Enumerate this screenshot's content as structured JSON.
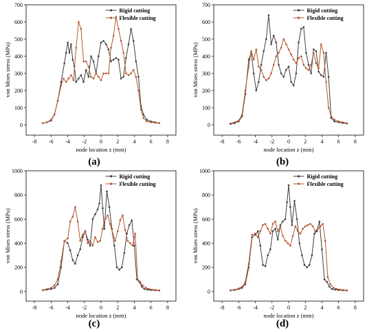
{
  "colors": {
    "rigid": "#3d3d3d",
    "flexible": "#b5542e",
    "axis": "#000000"
  },
  "chart_data": [
    {
      "panel": "(a)",
      "type": "line",
      "xlabel": "node location z (mm)",
      "ylabel": "von Mises stress (MPa)",
      "xlim": [
        -9,
        9
      ],
      "ylim": [
        -60,
        700
      ],
      "xticks": [
        -8,
        -6,
        -4,
        -2,
        0,
        2,
        4,
        6,
        8
      ],
      "yticks": [
        0,
        100,
        200,
        300,
        400,
        500,
        600,
        700
      ],
      "legend": "top-right",
      "series": [
        {
          "name": "Rigid cutting",
          "x": [
            -7,
            -6.5,
            -6,
            -5.6,
            -5.2,
            -4.8,
            -4.4,
            -4.2,
            -4,
            -3.8,
            -3.6,
            -3.4,
            -3.2,
            -3,
            -2.7,
            -2.4,
            -2.1,
            -1.8,
            -1.5,
            -1.2,
            -0.9,
            -0.6,
            -0.3,
            0,
            0.3,
            0.6,
            0.9,
            1.2,
            1.5,
            1.8,
            2.1,
            2.4,
            2.7,
            3,
            3.3,
            3.6,
            3.9,
            4.2,
            4.5,
            4.8,
            5.1,
            5.5,
            6,
            6.5,
            7
          ],
          "y": [
            10,
            15,
            25,
            60,
            140,
            250,
            360,
            420,
            480,
            420,
            470,
            380,
            340,
            250,
            270,
            290,
            250,
            320,
            280,
            400,
            370,
            300,
            400,
            480,
            490,
            470,
            440,
            370,
            380,
            390,
            380,
            270,
            280,
            390,
            470,
            560,
            490,
            370,
            280,
            110,
            60,
            30,
            20,
            15,
            10
          ]
        },
        {
          "name": "Flexible cutting",
          "x": [
            -7,
            -6.5,
            -6,
            -5.6,
            -5.2,
            -4.8,
            -4.5,
            -4.2,
            -3.9,
            -3.6,
            -3.3,
            -3,
            -2.7,
            -2.4,
            -2.1,
            -1.8,
            -1.5,
            -1.2,
            -0.9,
            -0.6,
            -0.3,
            0,
            0.3,
            0.6,
            0.9,
            1.2,
            1.5,
            1.8,
            2.1,
            2.4,
            2.7,
            3,
            3.3,
            3.6,
            3.9,
            4.2,
            4.5,
            4.8,
            5.1,
            5.5,
            6,
            6.5,
            7
          ],
          "y": [
            10,
            15,
            30,
            60,
            140,
            230,
            270,
            250,
            270,
            290,
            260,
            450,
            600,
            560,
            370,
            370,
            340,
            280,
            270,
            300,
            280,
            260,
            300,
            300,
            300,
            450,
            520,
            630,
            560,
            490,
            420,
            300,
            290,
            300,
            320,
            280,
            200,
            90,
            40,
            20,
            15,
            12,
            10
          ]
        }
      ]
    },
    {
      "panel": "(b)",
      "type": "line",
      "xlabel": "node location z (mm)",
      "ylabel": "von Mises stress (MPa)",
      "xlim": [
        -9,
        9
      ],
      "ylim": [
        -60,
        700
      ],
      "xticks": [
        -8,
        -6,
        -4,
        -2,
        0,
        2,
        4,
        6,
        8
      ],
      "yticks": [
        0,
        100,
        200,
        300,
        400,
        500,
        600,
        700
      ],
      "legend": "top-right",
      "series": [
        {
          "name": "Rigid cutting",
          "x": [
            -7,
            -6.5,
            -6,
            -5.6,
            -5.2,
            -4.8,
            -4.5,
            -4.2,
            -3.9,
            -3.6,
            -3.3,
            -3,
            -2.7,
            -2.4,
            -2.1,
            -1.8,
            -1.5,
            -1.2,
            -0.9,
            -0.6,
            -0.3,
            0,
            0.3,
            0.6,
            0.9,
            1.2,
            1.5,
            1.8,
            2.1,
            2.4,
            2.7,
            3,
            3.3,
            3.6,
            3.9,
            4.2,
            4.5,
            4.8,
            5.1,
            5.5,
            6,
            6.5,
            7
          ],
          "y": [
            5,
            10,
            20,
            50,
            180,
            380,
            420,
            300,
            200,
            250,
            350,
            430,
            500,
            640,
            470,
            520,
            480,
            350,
            300,
            280,
            320,
            340,
            250,
            230,
            300,
            480,
            560,
            570,
            420,
            350,
            300,
            440,
            430,
            310,
            290,
            280,
            420,
            280,
            40,
            20,
            15,
            10,
            8
          ]
        },
        {
          "name": "Flexible cutting",
          "x": [
            -7,
            -6.5,
            -6,
            -5.6,
            -5.2,
            -4.8,
            -4.5,
            -4.2,
            -3.9,
            -3.6,
            -3.3,
            -3,
            -2.7,
            -2.4,
            -2.1,
            -1.8,
            -1.5,
            -1.2,
            -0.9,
            -0.6,
            -0.3,
            0,
            0.3,
            0.6,
            0.9,
            1.2,
            1.5,
            1.8,
            2.1,
            2.4,
            2.7,
            3,
            3.3,
            3.6,
            3.9,
            4.2,
            4.5,
            4.8,
            5.1,
            5.5,
            6,
            6.5,
            7
          ],
          "y": [
            8,
            15,
            25,
            60,
            200,
            340,
            430,
            380,
            440,
            340,
            320,
            280,
            260,
            270,
            300,
            350,
            400,
            420,
            450,
            500,
            470,
            440,
            410,
            380,
            360,
            390,
            400,
            350,
            330,
            320,
            350,
            420,
            360,
            330,
            470,
            420,
            250,
            100,
            50,
            30,
            20,
            15,
            10
          ]
        }
      ]
    },
    {
      "panel": "(c)",
      "type": "line",
      "xlabel": "node location z (mm)",
      "ylabel": "von Mises stress (MPa)",
      "xlim": [
        -9,
        9
      ],
      "ylim": [
        -80,
        1000
      ],
      "xticks": [
        -8,
        -6,
        -4,
        -2,
        0,
        2,
        4,
        6,
        8
      ],
      "yticks": [
        0,
        200,
        400,
        600,
        800,
        1000
      ],
      "legend": "top-right",
      "series": [
        {
          "name": "Rigid cutting",
          "x": [
            -7,
            -6.5,
            -6,
            -5.6,
            -5.2,
            -4.8,
            -4.4,
            -4,
            -3.7,
            -3.4,
            -3.1,
            -2.8,
            -2.5,
            -2.2,
            -1.9,
            -1.6,
            -1.3,
            -1,
            -0.7,
            -0.4,
            -0.2,
            0,
            0.2,
            0.4,
            0.7,
            1,
            1.3,
            1.6,
            1.9,
            2.2,
            2.5,
            2.8,
            3.1,
            3.4,
            3.7,
            4,
            4.3,
            4.6,
            4.9,
            5.2,
            5.6,
            6,
            6.5,
            7
          ],
          "y": [
            10,
            15,
            20,
            30,
            60,
            200,
            420,
            400,
            340,
            260,
            230,
            300,
            350,
            450,
            500,
            430,
            380,
            600,
            640,
            680,
            730,
            880,
            690,
            520,
            830,
            700,
            520,
            380,
            200,
            180,
            200,
            320,
            480,
            550,
            590,
            380,
            100,
            80,
            40,
            20,
            15,
            12,
            10,
            8
          ]
        },
        {
          "name": "Flexible cutting",
          "x": [
            -7,
            -6.5,
            -6,
            -5.6,
            -5.2,
            -4.8,
            -4.4,
            -4,
            -3.7,
            -3.4,
            -3.1,
            -2.8,
            -2.5,
            -2.2,
            -1.9,
            -1.6,
            -1.3,
            -1,
            -0.7,
            -0.4,
            -0.1,
            0.2,
            0.5,
            0.8,
            1.1,
            1.4,
            1.7,
            2,
            2.3,
            2.6,
            2.9,
            3.2,
            3.5,
            3.8,
            4.1,
            4.4,
            4.7,
            5,
            5.4,
            5.8,
            6.2,
            6.6,
            7
          ],
          "y": [
            12,
            20,
            30,
            50,
            100,
            250,
            420,
            440,
            580,
            620,
            700,
            580,
            420,
            470,
            500,
            400,
            420,
            380,
            450,
            410,
            420,
            520,
            600,
            630,
            560,
            480,
            420,
            500,
            590,
            630,
            510,
            420,
            400,
            380,
            480,
            100,
            80,
            50,
            30,
            20,
            15,
            12,
            10
          ]
        }
      ]
    },
    {
      "panel": "(d)",
      "type": "line",
      "xlabel": "node location z (mm)",
      "ylabel": "von Mises stress (MPa)",
      "xlim": [
        -9,
        9
      ],
      "ylim": [
        -80,
        1000
      ],
      "xticks": [
        -8,
        -6,
        -4,
        -2,
        0,
        2,
        4,
        6,
        8
      ],
      "yticks": [
        0,
        200,
        400,
        600,
        800,
        1000
      ],
      "legend": "top-right",
      "series": [
        {
          "name": "Rigid cutting",
          "x": [
            -7,
            -6.5,
            -6,
            -5.6,
            -5.2,
            -4.8,
            -4.4,
            -4,
            -3.7,
            -3.4,
            -3.1,
            -2.8,
            -2.5,
            -2.2,
            -1.9,
            -1.6,
            -1.3,
            -1,
            -0.7,
            -0.4,
            -0.2,
            0,
            0.2,
            0.4,
            0.7,
            1,
            1.3,
            1.6,
            1.9,
            2.2,
            2.5,
            2.8,
            3.1,
            3.4,
            3.7,
            4,
            4.3,
            4.6,
            4.9,
            5.2,
            5.6,
            6,
            6.5,
            7
          ],
          "y": [
            8,
            12,
            20,
            30,
            60,
            200,
            450,
            470,
            500,
            380,
            220,
            210,
            300,
            350,
            500,
            520,
            430,
            550,
            580,
            600,
            740,
            880,
            700,
            550,
            750,
            600,
            400,
            300,
            220,
            200,
            220,
            300,
            480,
            500,
            580,
            350,
            100,
            80,
            40,
            20,
            15,
            12,
            10,
            8
          ]
        },
        {
          "name": "Flexible cutting",
          "x": [
            -7,
            -6.5,
            -6,
            -5.6,
            -5.2,
            -4.8,
            -4.4,
            -4,
            -3.7,
            -3.4,
            -3.1,
            -2.8,
            -2.5,
            -2.2,
            -1.9,
            -1.6,
            -1.3,
            -1,
            -0.7,
            -0.4,
            -0.1,
            0.2,
            0.5,
            0.8,
            1.1,
            1.4,
            1.7,
            2,
            2.3,
            2.6,
            2.9,
            3.2,
            3.5,
            3.8,
            4.1,
            4.4,
            4.7,
            5,
            5.4,
            5.8,
            6.2,
            6.6,
            7
          ],
          "y": [
            10,
            15,
            25,
            40,
            80,
            230,
            470,
            480,
            450,
            500,
            550,
            560,
            520,
            480,
            560,
            580,
            500,
            540,
            460,
            420,
            400,
            380,
            460,
            540,
            500,
            480,
            520,
            540,
            550,
            560,
            540,
            500,
            520,
            540,
            560,
            420,
            120,
            60,
            30,
            20,
            15,
            12,
            10
          ]
        }
      ]
    }
  ]
}
